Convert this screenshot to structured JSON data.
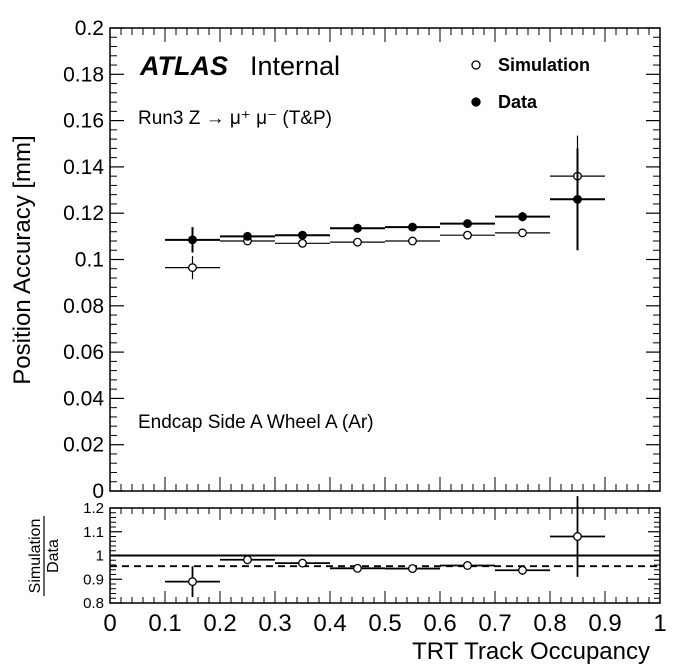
{
  "chart_data": [
    {
      "type": "scatter",
      "panel": "main",
      "title": "",
      "ylabel": "Position Accuracy [mm]",
      "ylim": [
        0,
        0.2
      ],
      "xlim": [
        0,
        1
      ],
      "yticks": [
        "0",
        "0.02",
        "0.04",
        "0.06",
        "0.08",
        "0.1",
        "0.12",
        "0.14",
        "0.16",
        "0.18",
        "0.2"
      ],
      "yticks_values": [
        0,
        0.02,
        0.04,
        0.06,
        0.08,
        0.1,
        0.12,
        0.14,
        0.16,
        0.18,
        0.2
      ],
      "brand": "ATLAS",
      "status": "Internal",
      "process": "Run3 Z → μ⁺ μ⁻ (T&P)",
      "region": "Endcap Side A Wheel A (Ar)",
      "legend_position": "top-right",
      "series": [
        {
          "name": "Simulation",
          "marker": "open-circle",
          "points": [
            {
              "x": 0.15,
              "y": 0.0965,
              "xerr": 0.05,
              "yerr": 0.005
            },
            {
              "x": 0.25,
              "y": 0.108,
              "xerr": 0.05,
              "yerr": 0.001
            },
            {
              "x": 0.35,
              "y": 0.107,
              "xerr": 0.05,
              "yerr": 0.001
            },
            {
              "x": 0.45,
              "y": 0.1075,
              "xerr": 0.05,
              "yerr": 0.001
            },
            {
              "x": 0.55,
              "y": 0.108,
              "xerr": 0.05,
              "yerr": 0.001
            },
            {
              "x": 0.65,
              "y": 0.1105,
              "xerr": 0.05,
              "yerr": 0.001
            },
            {
              "x": 0.75,
              "y": 0.1115,
              "xerr": 0.05,
              "yerr": 0.0015
            },
            {
              "x": 0.85,
              "y": 0.136,
              "xerr": 0.05,
              "yerr": 0.0175
            }
          ]
        },
        {
          "name": "Data",
          "marker": "filled-circle",
          "points": [
            {
              "x": 0.15,
              "y": 0.1085,
              "xerr": 0.05,
              "yerr": 0.0055
            },
            {
              "x": 0.25,
              "y": 0.11,
              "xerr": 0.05,
              "yerr": 0.001
            },
            {
              "x": 0.35,
              "y": 0.1105,
              "xerr": 0.05,
              "yerr": 0.001
            },
            {
              "x": 0.45,
              "y": 0.1135,
              "xerr": 0.05,
              "yerr": 0.001
            },
            {
              "x": 0.55,
              "y": 0.114,
              "xerr": 0.05,
              "yerr": 0.001
            },
            {
              "x": 0.65,
              "y": 0.1155,
              "xerr": 0.05,
              "yerr": 0.001
            },
            {
              "x": 0.75,
              "y": 0.1185,
              "xerr": 0.05,
              "yerr": 0.002
            },
            {
              "x": 0.85,
              "y": 0.126,
              "xerr": 0.05,
              "yerr": 0.022
            }
          ]
        }
      ]
    },
    {
      "type": "scatter",
      "panel": "ratio",
      "ylabel_num": "Simulation",
      "ylabel_den": "Data",
      "xlabel": "TRT Track Occupancy",
      "ylim": [
        0.8,
        1.2
      ],
      "xlim": [
        0,
        1
      ],
      "yticks": [
        "0.8",
        "0.9",
        "1",
        "1.1",
        "1.2"
      ],
      "yticks_values": [
        0.8,
        0.9,
        1.0,
        1.1,
        1.2
      ],
      "xticks": [
        "0",
        "0.1",
        "0.2",
        "0.3",
        "0.4",
        "0.5",
        "0.6",
        "0.7",
        "0.8",
        "0.9",
        "1"
      ],
      "xticks_values": [
        0,
        0.1,
        0.2,
        0.3,
        0.4,
        0.5,
        0.6,
        0.7,
        0.8,
        0.9,
        1.0
      ],
      "reference_lines": [
        {
          "y": 1.0,
          "style": "solid"
        },
        {
          "y": 0.955,
          "style": "dashed"
        }
      ],
      "series": [
        {
          "name": "Simulation / Data",
          "marker": "open-circle",
          "points": [
            {
              "x": 0.15,
              "y": 0.89,
              "xerr": 0.05,
              "yerr": 0.065
            },
            {
              "x": 0.25,
              "y": 0.982,
              "xerr": 0.05,
              "yerr": 0.01
            },
            {
              "x": 0.35,
              "y": 0.968,
              "xerr": 0.05,
              "yerr": 0.01
            },
            {
              "x": 0.45,
              "y": 0.946,
              "xerr": 0.05,
              "yerr": 0.01
            },
            {
              "x": 0.55,
              "y": 0.945,
              "xerr": 0.05,
              "yerr": 0.01
            },
            {
              "x": 0.65,
              "y": 0.958,
              "xerr": 0.05,
              "yerr": 0.01
            },
            {
              "x": 0.75,
              "y": 0.938,
              "xerr": 0.05,
              "yerr": 0.02
            },
            {
              "x": 0.85,
              "y": 1.08,
              "xerr": 0.05,
              "yerr": 0.17
            }
          ]
        }
      ]
    }
  ]
}
